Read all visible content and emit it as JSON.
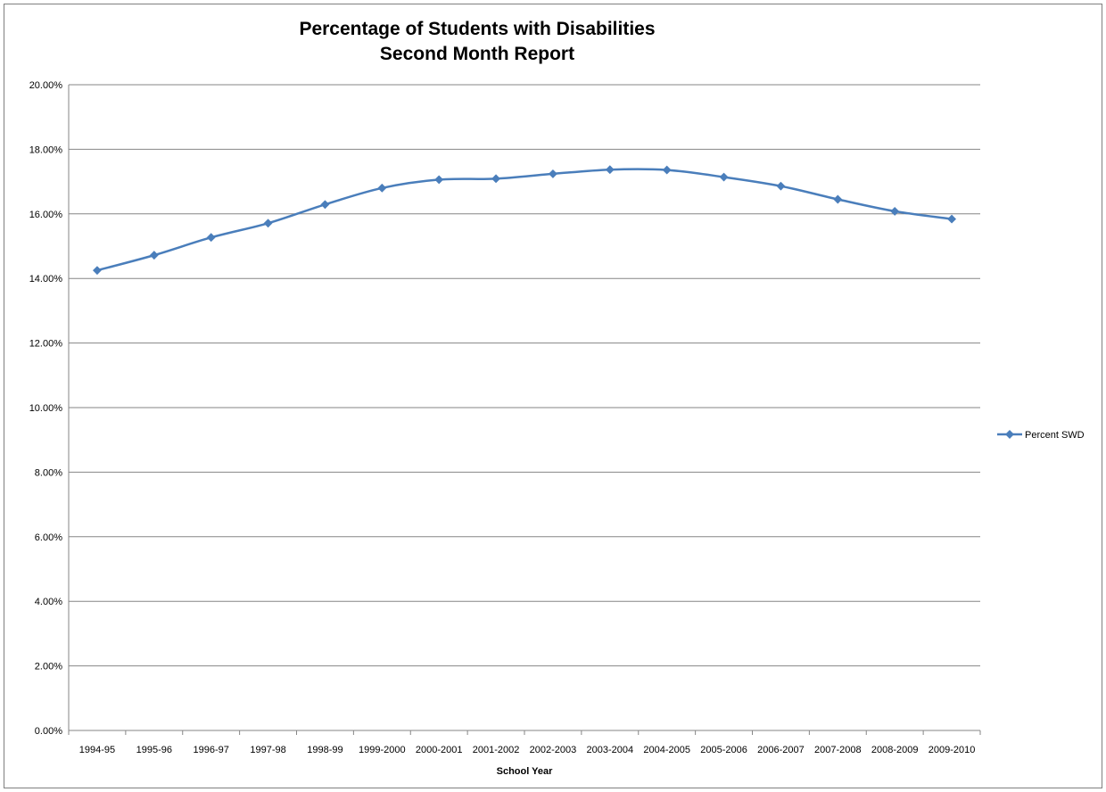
{
  "chart_data": {
    "type": "line",
    "title": "Percentage of Students with Disabilities",
    "subtitle": "Second Month Report",
    "xlabel": "School Year",
    "ylabel": "",
    "ylim": [
      0,
      20
    ],
    "yticks": [
      "0.00%",
      "2.00%",
      "4.00%",
      "6.00%",
      "8.00%",
      "10.00%",
      "12.00%",
      "14.00%",
      "16.00%",
      "18.00%",
      "20.00%"
    ],
    "grid": true,
    "legend_position": "right",
    "categories": [
      "1994-95",
      "1995-96",
      "1996-97",
      "1997-98",
      "1998-99",
      "1999-2000",
      "2000-2001",
      "2001-2002",
      "2002-2003",
      "2003-2004",
      "2004-2005",
      "2005-2006",
      "2006-2007",
      "2007-2008",
      "2008-2009",
      "2009-2010"
    ],
    "series": [
      {
        "name": "Percent SWD",
        "color": "#4a7ebb",
        "values": [
          14.25,
          14.72,
          15.27,
          15.71,
          16.29,
          16.8,
          17.06,
          17.09,
          17.24,
          17.37,
          17.36,
          17.14,
          16.86,
          16.45,
          16.08,
          15.84
        ]
      }
    ]
  }
}
